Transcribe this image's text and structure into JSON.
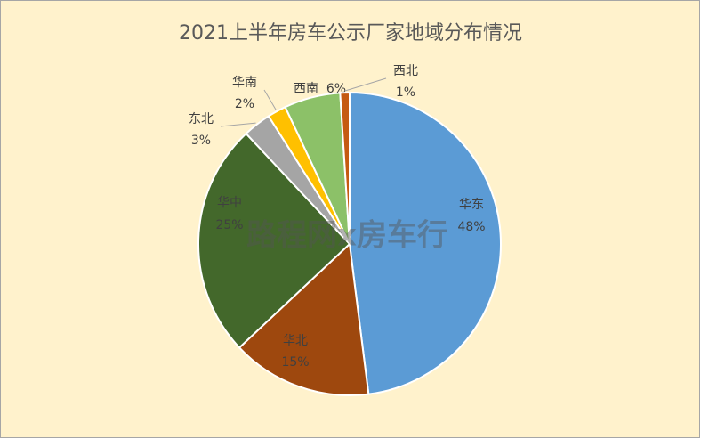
{
  "chart_data": {
    "type": "pie",
    "title": "2021上半年房车公示厂家地域分布情况",
    "categories": [
      "华东",
      "华北",
      "华中",
      "东北",
      "华南",
      "西南",
      "西北"
    ],
    "values": [
      48,
      15,
      25,
      3,
      2,
      6,
      1
    ],
    "value_labels": [
      "48%",
      "15%",
      "25%",
      "3%",
      "2%",
      "6%",
      "1%"
    ],
    "colors": [
      "#5b9bd5",
      "#9e480e",
      "#43682b",
      "#a5a5a5",
      "#ffc000",
      "#8cc168",
      "#c55a11"
    ],
    "watermark": "路程网x房车行"
  }
}
